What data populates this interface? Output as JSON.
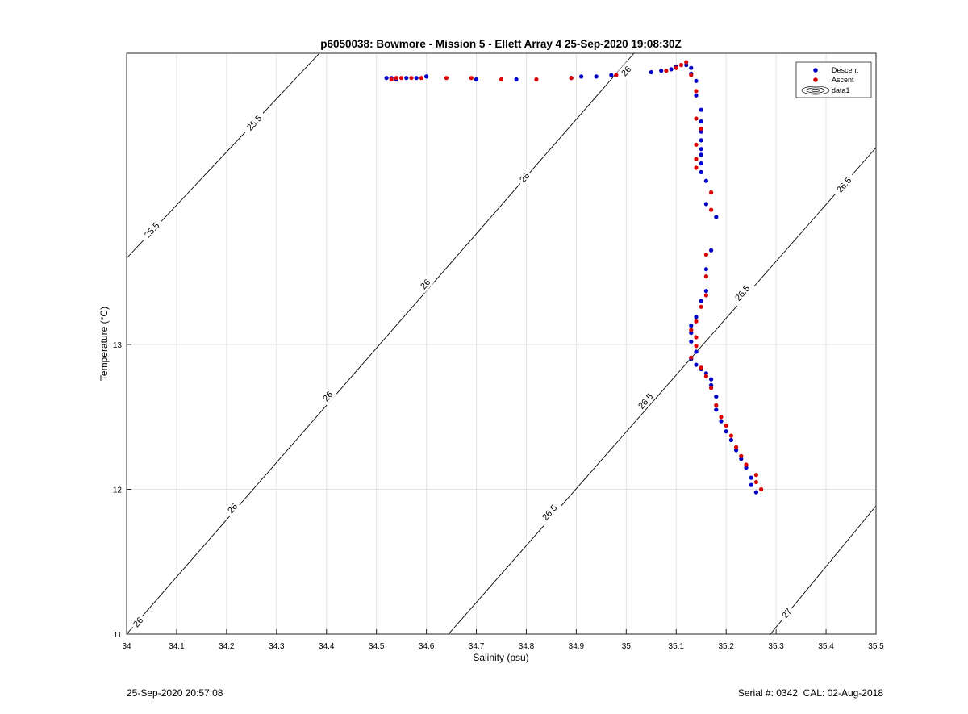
{
  "chart_data": {
    "type": "scatter",
    "title": "p6050038: Bowmore - Mission 5 - Ellett Array 4 25-Sep-2020 19:08:30Z",
    "xlabel": "Salinity (psu)",
    "ylabel": "Temperature (°C)",
    "xlim": [
      34,
      35.5
    ],
    "ylim": [
      11,
      15
    ],
    "x_ticks": [
      "34",
      "34.1",
      "34.2",
      "34.3",
      "34.4",
      "34.5",
      "34.6",
      "34.7",
      "34.8",
      "34.9",
      "35",
      "35.1",
      "35.2",
      "35.3",
      "35.4",
      "35.5"
    ],
    "y_ticks": [
      "11",
      "12",
      "13"
    ],
    "grid": true,
    "legend_position": "top-right",
    "legend": [
      "Descent",
      "Ascent",
      "data1"
    ],
    "contour_labels": [
      "25.5",
      "26",
      "26.5",
      "27"
    ],
    "series": [
      {
        "name": "Descent",
        "color": "#0000c8",
        "points": [
          [
            34.52,
            14.84
          ],
          [
            34.53,
            14.84
          ],
          [
            34.54,
            14.83
          ],
          [
            34.56,
            14.84
          ],
          [
            34.58,
            14.84
          ],
          [
            34.6,
            14.85
          ],
          [
            34.7,
            14.83
          ],
          [
            34.78,
            14.83
          ],
          [
            34.89,
            14.84
          ],
          [
            34.91,
            14.85
          ],
          [
            34.94,
            14.85
          ],
          [
            34.97,
            14.86
          ],
          [
            35.05,
            14.88
          ],
          [
            35.07,
            14.89
          ],
          [
            35.09,
            14.9
          ],
          [
            35.1,
            14.92
          ],
          [
            35.12,
            14.93
          ],
          [
            35.13,
            14.91
          ],
          [
            35.13,
            14.87
          ],
          [
            35.14,
            14.82
          ],
          [
            35.14,
            14.72
          ],
          [
            35.15,
            14.62
          ],
          [
            35.15,
            14.54
          ],
          [
            35.15,
            14.47
          ],
          [
            35.15,
            14.41
          ],
          [
            35.15,
            14.35
          ],
          [
            35.15,
            14.31
          ],
          [
            35.15,
            14.25
          ],
          [
            35.15,
            14.19
          ],
          [
            35.16,
            14.13
          ],
          [
            35.16,
            13.97
          ],
          [
            35.18,
            13.88
          ],
          [
            35.17,
            13.65
          ],
          [
            35.16,
            13.52
          ],
          [
            35.16,
            13.37
          ],
          [
            35.15,
            13.3
          ],
          [
            35.14,
            13.19
          ],
          [
            35.13,
            13.13
          ],
          [
            35.13,
            13.08
          ],
          [
            35.13,
            13.02
          ],
          [
            35.14,
            12.95
          ],
          [
            35.13,
            12.9
          ],
          [
            35.14,
            12.86
          ],
          [
            35.15,
            12.83
          ],
          [
            35.16,
            12.8
          ],
          [
            35.17,
            12.76
          ],
          [
            35.17,
            12.72
          ],
          [
            35.18,
            12.64
          ],
          [
            35.18,
            12.55
          ],
          [
            35.19,
            12.47
          ],
          [
            35.2,
            12.4
          ],
          [
            35.21,
            12.34
          ],
          [
            35.22,
            12.27
          ],
          [
            35.23,
            12.21
          ],
          [
            35.24,
            12.15
          ],
          [
            35.25,
            12.08
          ],
          [
            35.25,
            12.03
          ],
          [
            35.26,
            11.98
          ]
        ]
      },
      {
        "name": "Ascent",
        "color": "#dc0000",
        "points": [
          [
            34.53,
            14.83
          ],
          [
            34.54,
            14.84
          ],
          [
            34.55,
            14.84
          ],
          [
            34.57,
            14.84
          ],
          [
            34.59,
            14.84
          ],
          [
            34.64,
            14.84
          ],
          [
            34.69,
            14.84
          ],
          [
            34.75,
            14.83
          ],
          [
            34.82,
            14.83
          ],
          [
            34.89,
            14.84
          ],
          [
            34.98,
            14.86
          ],
          [
            35.08,
            14.89
          ],
          [
            35.1,
            14.91
          ],
          [
            35.11,
            14.93
          ],
          [
            35.12,
            14.95
          ],
          [
            35.13,
            14.86
          ],
          [
            35.14,
            14.75
          ],
          [
            35.14,
            14.56
          ],
          [
            35.15,
            14.49
          ],
          [
            35.14,
            14.38
          ],
          [
            35.14,
            14.28
          ],
          [
            35.14,
            14.22
          ],
          [
            35.17,
            14.05
          ],
          [
            35.17,
            13.93
          ],
          [
            35.16,
            13.62
          ],
          [
            35.16,
            13.47
          ],
          [
            35.16,
            13.34
          ],
          [
            35.15,
            13.26
          ],
          [
            35.14,
            13.16
          ],
          [
            35.13,
            13.1
          ],
          [
            35.14,
            13.05
          ],
          [
            35.14,
            12.99
          ],
          [
            35.13,
            12.91
          ],
          [
            35.15,
            12.84
          ],
          [
            35.16,
            12.78
          ],
          [
            35.17,
            12.7
          ],
          [
            35.18,
            12.58
          ],
          [
            35.19,
            12.5
          ],
          [
            35.2,
            12.44
          ],
          [
            35.21,
            12.37
          ],
          [
            35.22,
            12.29
          ],
          [
            35.23,
            12.23
          ],
          [
            35.24,
            12.17
          ],
          [
            35.26,
            12.1
          ],
          [
            35.26,
            12.05
          ],
          [
            35.27,
            12.0
          ]
        ]
      }
    ]
  },
  "footer": {
    "timestamp": "25-Sep-2020 20:57:08",
    "serial": "Serial #: 0342  CAL: 02-Aug-2018"
  }
}
